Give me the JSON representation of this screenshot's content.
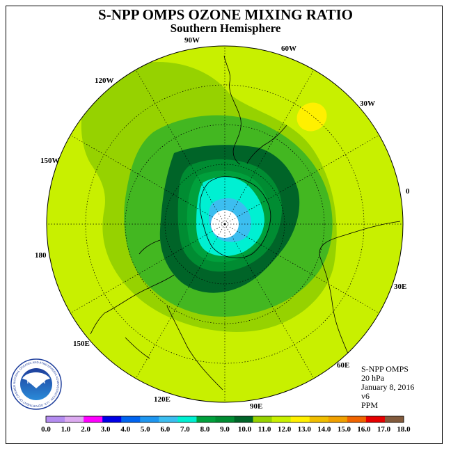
{
  "title": "S-NPP OMPS OZONE MIXING RATIO",
  "subtitle": "Southern Hemisphere",
  "longitude_labels": [
    "90W",
    "60W",
    "30W",
    "0",
    "30E",
    "60E",
    "90E",
    "120E",
    "150E",
    "180",
    "150W",
    "120W"
  ],
  "info": {
    "instrument": "S-NPP OMPS",
    "pressure": "20 hPa",
    "date": "January 8, 2016",
    "version": "v6",
    "units": "PPM"
  },
  "logo": {
    "text": "NOAA",
    "ring_text": "NATIONAL OCEANIC AND ATMOSPHERIC ADMINISTRATION · U.S. DEPARTMENT OF COMMERCE"
  },
  "colorbar": {
    "labels": [
      "0.0",
      "1.0",
      "2.0",
      "3.0",
      "4.0",
      "5.0",
      "6.0",
      "7.0",
      "8.0",
      "9.0",
      "10.0",
      "11.0",
      "12.0",
      "13.0",
      "14.0",
      "15.0",
      "16.0",
      "17.0",
      "18.0"
    ],
    "colors": [
      "#b48cf0",
      "#dcaaf0",
      "#ff00ff",
      "#0000e6",
      "#0064f0",
      "#1e96f0",
      "#3cbef0",
      "#00f0d2",
      "#00a03c",
      "#008c32",
      "#006428",
      "#96d200",
      "#c8f000",
      "#fff000",
      "#f0be00",
      "#f0a000",
      "#f06400",
      "#e60000",
      "#825a3c"
    ]
  },
  "chart_data": {
    "type": "heatmap",
    "quantity": "ozone mixing ratio",
    "units": "PPM",
    "level": "20 hPa",
    "date": "January 8, 2016",
    "color_scale_ppm": [
      0,
      1,
      2,
      3,
      4,
      5,
      6,
      7,
      8,
      9,
      10,
      11,
      12,
      13,
      14,
      15,
      16,
      17,
      18
    ],
    "regions": [
      {
        "area": "south pole (no data)",
        "ppm_range": [
          null,
          null
        ]
      },
      {
        "area": "polar core",
        "ppm_range": [
          6,
          7
        ]
      },
      {
        "area": "inner ring",
        "ppm_range": [
          7,
          8
        ]
      },
      {
        "area": "ring",
        "ppm_range": [
          8,
          9
        ]
      },
      {
        "area": "ring",
        "ppm_range": [
          9,
          10
        ]
      },
      {
        "area": "collar",
        "ppm_range": [
          10,
          11
        ]
      },
      {
        "area": "midlatitudes",
        "ppm_range": [
          11,
          12
        ]
      },
      {
        "area": "near 30W",
        "ppm_range": [
          12,
          13
        ]
      }
    ]
  }
}
